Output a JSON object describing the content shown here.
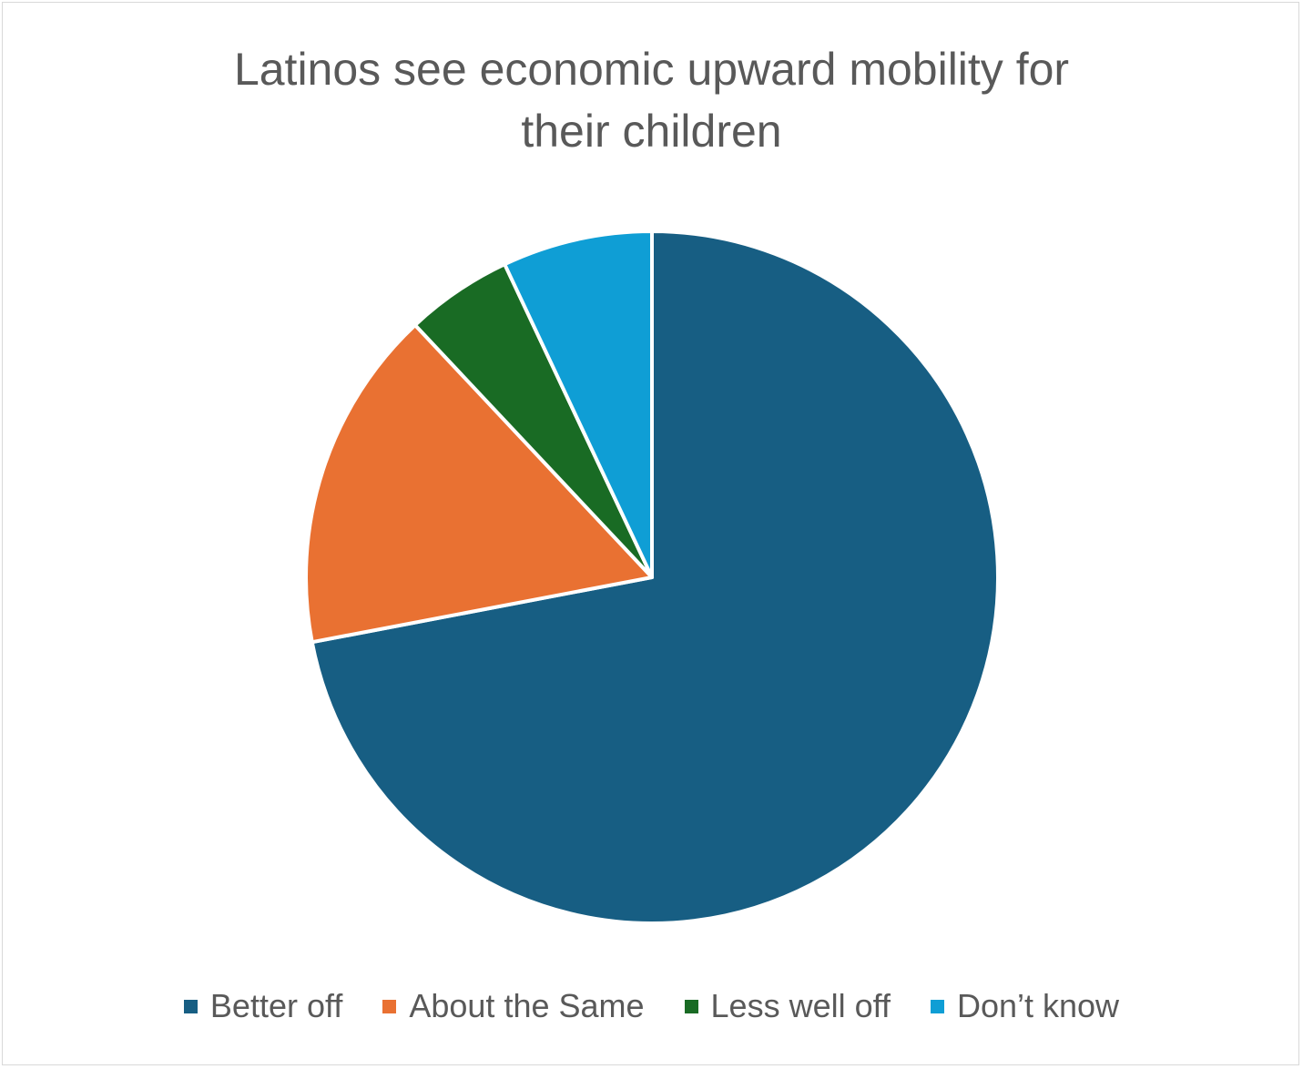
{
  "chart_data": {
    "type": "pie",
    "title": "Latinos see economic upward mobility for their children",
    "title_lines": [
      "Latinos see economic upward mobility for",
      "their children"
    ],
    "categories": [
      "Better off",
      "About the Same",
      "Less well off",
      "Don’t know"
    ],
    "values": [
      72,
      16,
      5,
      7
    ],
    "colors": [
      "#175E83",
      "#E97132",
      "#196B24",
      "#0F9ED5"
    ],
    "legend_position": "bottom",
    "start_angle": "12 o'clock",
    "direction": "clockwise"
  }
}
